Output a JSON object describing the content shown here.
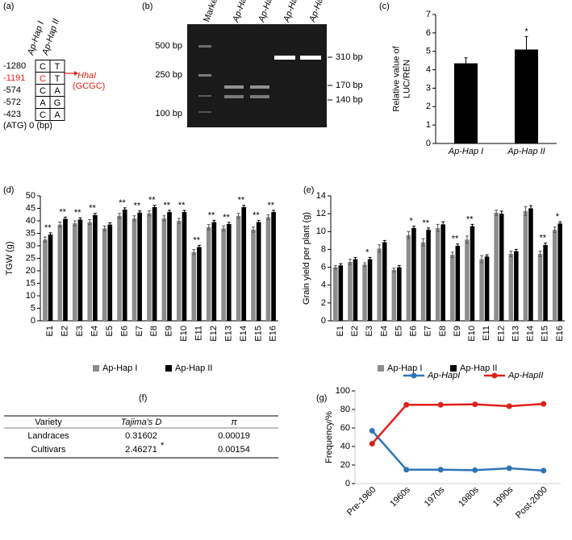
{
  "sequence_panel": {
    "label": "(a)",
    "headers": [
      "Ap-Hap I",
      "Ap-Hap II"
    ],
    "rows": [
      {
        "position": "-1280",
        "bases": [
          "C",
          "T"
        ]
      },
      {
        "position": "-1191",
        "bases": [
          "C",
          "T"
        ]
      },
      {
        "position": "-574",
        "bases": [
          "C",
          "A"
        ]
      },
      {
        "position": "-572",
        "bases": [
          "A",
          "G"
        ]
      },
      {
        "position": "-423",
        "bases": [
          "C",
          "A"
        ]
      }
    ],
    "footer": "(ATG) 0 (bp)",
    "enzyme": "HhaI",
    "site": "(GCGC)"
  },
  "gel_panel": {
    "label": "(b)",
    "lanes": [
      "Marker",
      "Ap-Hap I",
      "Ap-Hap I",
      "Ap-Hap II",
      "Ap-Hap II"
    ],
    "marker_sizes": [
      "500 bp",
      "250 bp",
      "100 bp"
    ],
    "band_sizes": [
      "310 bp",
      "170 bp",
      "140 bp"
    ]
  },
  "table_panel": {
    "label": "(f)",
    "columns": [
      "Variety",
      "Tajima's D",
      "π"
    ],
    "rows": [
      [
        "Landraces",
        "0.31602",
        "0.00019"
      ],
      [
        "Cultivars",
        "2.46271",
        "0.00154"
      ]
    ],
    "marks": [
      null,
      "*"
    ]
  },
  "chart_data": [
    {
      "type": "bar",
      "panel_label": "(c)",
      "y_label": [
        "Relative value of",
        "LUC/REN"
      ],
      "categories": [
        "Ap-Hap I",
        "Ap-Hap II"
      ],
      "values": [
        4.35,
        5.1
      ],
      "errors": [
        0.3,
        0.7
      ],
      "color": "#000000",
      "annotations": [
        null,
        "*"
      ],
      "ylim": [
        0,
        7
      ],
      "yticks": [
        0,
        1,
        2,
        3,
        4,
        5,
        6,
        7
      ]
    },
    {
      "type": "bar",
      "panel_label": "(d)",
      "y_label": [
        "TGW (g)"
      ],
      "categories": [
        "E1",
        "E2",
        "E3",
        "E4",
        "E5",
        "E6",
        "E7",
        "E8",
        "E9",
        "E10",
        "E11",
        "E12",
        "E13",
        "E14",
        "E15",
        "E16"
      ],
      "series": [
        {
          "name": "Ap-Hap I",
          "color": "#8c8c8c",
          "values": [
            32.5,
            38.5,
            39,
            39.5,
            37,
            42,
            41,
            43,
            41,
            40,
            27.5,
            37.5,
            37,
            42,
            36.5,
            41.5
          ],
          "errors": [
            1,
            1,
            1,
            1,
            1,
            1,
            1,
            1,
            1,
            1,
            1,
            1,
            1,
            1,
            1,
            1
          ]
        },
        {
          "name": "Ap-Hap II",
          "color": "#000000",
          "values": [
            34.5,
            40.8,
            40.5,
            42.3,
            38.5,
            44.5,
            43.3,
            45.5,
            43.5,
            43.5,
            29.5,
            39.5,
            38.7,
            45.5,
            39.5,
            43.5
          ],
          "errors": [
            0.7,
            0.7,
            0.7,
            0.7,
            0.7,
            0.7,
            0.7,
            0.7,
            0.7,
            0.7,
            0.7,
            0.7,
            0.7,
            0.7,
            0.7,
            0.7
          ]
        }
      ],
      "annotations": [
        "**",
        "**",
        "**",
        "**",
        null,
        "**",
        "**",
        "**",
        "**",
        "**",
        "**",
        "**",
        "**",
        "**",
        "**",
        "**"
      ],
      "ylim": [
        0,
        50
      ],
      "yticks": [
        0,
        5,
        10,
        15,
        20,
        25,
        30,
        35,
        40,
        45,
        50
      ]
    },
    {
      "type": "bar",
      "panel_label": "(e)",
      "y_label": [
        "Grain yield per plant (g)"
      ],
      "categories": [
        "E1",
        "E2",
        "E3",
        "E4",
        "E5",
        "E6",
        "E7",
        "E8",
        "E9",
        "E10",
        "E11",
        "E12",
        "E13",
        "E14",
        "E15",
        "E16"
      ],
      "series": [
        {
          "name": "Ap-Hap I",
          "color": "#8c8c8c",
          "values": [
            6.0,
            6.6,
            6.3,
            8.1,
            5.7,
            9.6,
            8.8,
            10.4,
            7.4,
            9.1,
            6.9,
            12.1,
            7.5,
            12.3,
            7.5,
            10.2
          ],
          "errors": [
            0.2,
            0.3,
            0.2,
            0.4,
            0.2,
            0.4,
            0.4,
            0.4,
            0.3,
            0.4,
            0.4,
            0.3,
            0.3,
            0.5,
            0.3,
            0.3
          ]
        },
        {
          "name": "Ap-Hap II",
          "color": "#000000",
          "values": [
            6.2,
            6.9,
            6.9,
            8.8,
            6.0,
            10.4,
            10.2,
            10.8,
            8.4,
            10.6,
            7.2,
            12.0,
            7.8,
            12.6,
            8.5,
            10.9
          ],
          "errors": [
            0.2,
            0.2,
            0.2,
            0.2,
            0.2,
            0.2,
            0.2,
            0.3,
            0.2,
            0.2,
            0.2,
            0.3,
            0.2,
            0.3,
            0.2,
            0.2
          ]
        }
      ],
      "annotations": [
        null,
        null,
        "*",
        null,
        null,
        "*",
        "**",
        null,
        "**",
        "**",
        null,
        null,
        null,
        null,
        "**",
        "*"
      ],
      "ylim": [
        0,
        14
      ],
      "yticks": [
        0,
        2,
        4,
        6,
        8,
        10,
        12,
        14
      ]
    },
    {
      "type": "line",
      "panel_label": "(g)",
      "y_label": [
        "Frequency/%"
      ],
      "categories": [
        "Pre-1960",
        "1960s",
        "1970s",
        "1980s",
        "1990s",
        "Post-2000"
      ],
      "series": [
        {
          "name": "Ap-HapI",
          "color": "#2e75b6",
          "values": [
            57,
            15,
            15,
            14.5,
            16.5,
            14
          ]
        },
        {
          "name": "Ap-HapII",
          "color": "#e0201b",
          "values": [
            43,
            85,
            85,
            85.5,
            83.5,
            86
          ]
        }
      ],
      "ylim": [
        0,
        100
      ],
      "yticks": [
        0,
        20,
        40,
        60,
        80,
        100
      ]
    }
  ]
}
